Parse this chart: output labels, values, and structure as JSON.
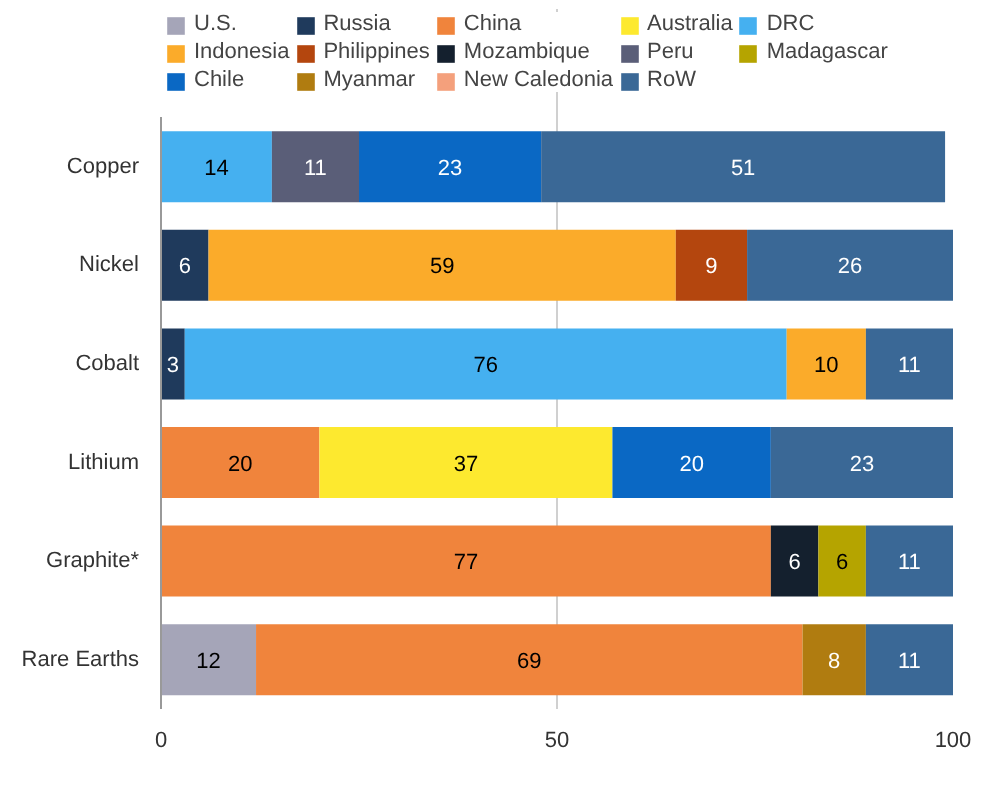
{
  "chart_data": {
    "type": "bar",
    "orientation": "horizontal",
    "stacked": true,
    "data_labels": true,
    "legend": "top",
    "grid": "x",
    "categories": [
      "Copper",
      "Nickel",
      "Cobalt",
      "Lithium",
      "Graphite*",
      "Rare Earths"
    ],
    "xlim": [
      0,
      100
    ],
    "xticks": [
      0,
      50,
      100
    ],
    "series": [
      {
        "name": "U.S.",
        "color": "#a5a5b8",
        "values": [
          null,
          null,
          null,
          null,
          null,
          12
        ]
      },
      {
        "name": "Russia",
        "color": "#1f3a5c",
        "values": [
          null,
          6,
          3,
          null,
          null,
          null
        ]
      },
      {
        "name": "China",
        "color": "#f0843c",
        "values": [
          null,
          null,
          null,
          20,
          77,
          69
        ]
      },
      {
        "name": "Australia",
        "color": "#fde92f",
        "values": [
          null,
          null,
          null,
          37,
          null,
          null
        ]
      },
      {
        "name": "DRC",
        "color": "#45b0f0",
        "values": [
          14,
          null,
          76,
          null,
          null,
          null
        ]
      },
      {
        "name": "Indonesia",
        "color": "#fbab2a",
        "values": [
          null,
          59,
          10,
          null,
          null,
          null
        ]
      },
      {
        "name": "Philippines",
        "color": "#b4460e",
        "values": [
          null,
          9,
          null,
          null,
          null,
          null
        ]
      },
      {
        "name": "Mozambique",
        "color": "#14202e",
        "values": [
          null,
          null,
          null,
          null,
          6,
          null
        ]
      },
      {
        "name": "Peru",
        "color": "#5a5e78",
        "values": [
          11,
          null,
          null,
          null,
          null,
          null
        ]
      },
      {
        "name": "Madagascar",
        "color": "#b5a400",
        "values": [
          null,
          null,
          null,
          null,
          6,
          null
        ]
      },
      {
        "name": "Chile",
        "color": "#0a68c4",
        "values": [
          23,
          null,
          null,
          20,
          null,
          null
        ]
      },
      {
        "name": "Myanmar",
        "color": "#b07c10",
        "values": [
          null,
          null,
          null,
          null,
          null,
          8
        ]
      },
      {
        "name": "New Caledonia",
        "color": "#f4a07c",
        "values": [
          null,
          null,
          null,
          null,
          null,
          null
        ]
      },
      {
        "name": "RoW",
        "color": "#3a6896",
        "values": [
          51,
          26,
          11,
          23,
          11,
          11
        ]
      }
    ]
  }
}
